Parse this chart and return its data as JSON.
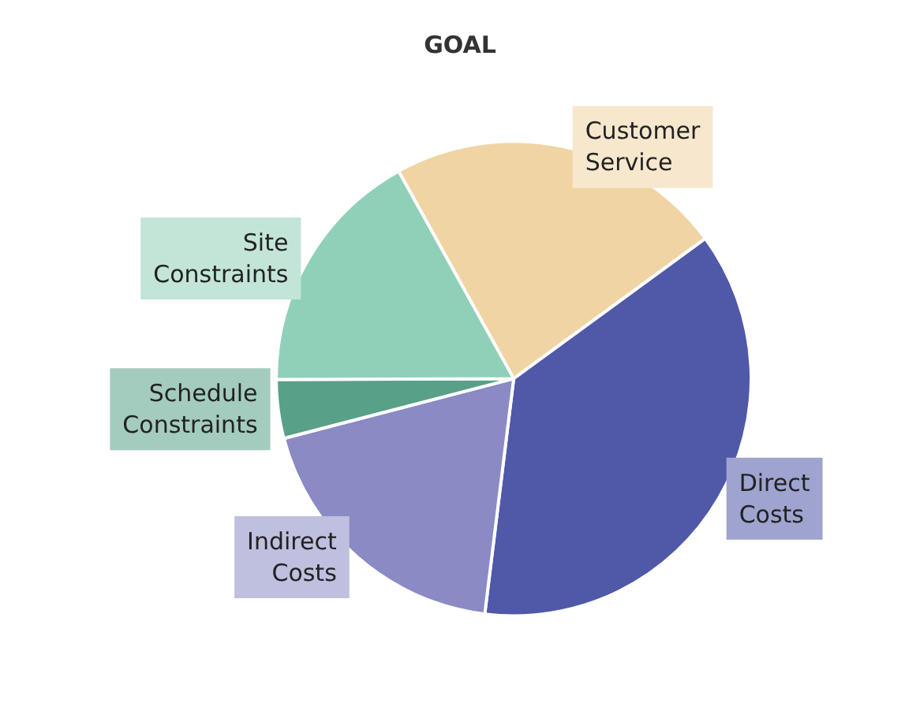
{
  "chart_data": {
    "type": "pie",
    "title": "GOAL",
    "categories": [
      "Customer Service",
      "Direct Costs",
      "Indirect Costs",
      "Schedule Constraints",
      "Site Constraints"
    ],
    "values": [
      23,
      37,
      19,
      4,
      17
    ],
    "colors": [
      "#f0d4a4",
      "#5058a8",
      "#8a8ac4",
      "#58a088",
      "#90d0b8"
    ],
    "legend": false
  }
}
